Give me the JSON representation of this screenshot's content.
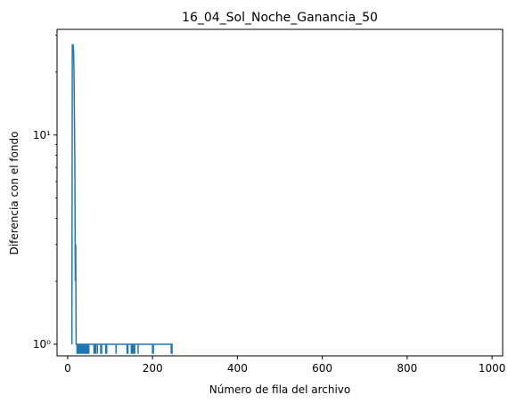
{
  "chart_data": {
    "type": "line",
    "title": "16_04_Sol_Noche_Ganancia_50",
    "xlabel": "Número de fila del archivo",
    "ylabel": "Diferencia con el fondo",
    "xlim": [
      -25,
      1025
    ],
    "ylim": [
      0.88,
      32
    ],
    "yscale": "log",
    "grid": false,
    "x_ticks": [
      0,
      200,
      400,
      600,
      800,
      1000
    ],
    "y_ticks": [
      {
        "value": 1,
        "label": "10⁰"
      },
      {
        "value": 10,
        "label": "10¹"
      }
    ],
    "series": [
      {
        "color": "#1f77b4",
        "x": [
          10,
          11,
          12,
          13,
          14,
          15,
          16,
          17,
          18,
          19,
          20,
          21,
          22,
          23,
          24,
          25,
          26,
          27,
          28,
          29,
          30,
          31,
          32,
          33,
          34,
          35,
          36,
          37,
          38,
          39,
          40,
          41,
          42,
          43,
          44,
          45,
          46,
          47,
          48,
          49,
          50,
          51,
          52,
          53,
          54,
          55,
          56,
          57,
          58,
          59,
          60,
          61,
          62,
          63,
          64,
          65,
          66,
          67,
          68,
          69,
          70,
          71,
          72,
          73,
          74,
          75,
          76,
          77,
          78,
          79,
          80,
          81,
          82,
          83,
          84,
          85,
          86,
          87,
          88,
          89,
          90,
          91,
          92,
          93,
          94,
          95,
          96,
          97,
          98,
          99,
          100,
          101,
          102,
          103,
          104,
          105,
          106,
          107,
          108,
          109,
          110,
          111,
          112,
          113,
          114,
          115,
          116,
          117,
          118,
          119,
          120,
          121,
          122,
          123,
          124,
          125,
          126,
          127,
          128,
          129,
          130,
          131,
          132,
          133,
          134,
          135,
          136,
          137,
          138,
          139,
          140,
          141,
          142,
          143,
          144,
          145,
          146,
          147,
          148,
          149,
          150,
          151,
          152,
          153,
          154,
          155,
          156,
          157,
          158,
          159,
          160,
          161,
          162,
          163,
          164,
          165,
          166,
          167,
          168,
          169,
          170,
          171,
          172,
          173,
          174,
          175,
          176,
          177,
          178,
          179,
          180,
          181,
          182,
          183,
          184,
          185,
          186,
          187,
          188,
          189,
          190,
          191,
          192,
          193,
          194,
          195,
          196,
          197,
          198,
          199,
          200,
          201,
          202,
          203,
          204,
          205,
          206,
          207,
          208,
          209,
          210,
          211,
          212,
          213,
          214,
          215,
          216,
          217,
          218,
          219,
          220,
          221,
          222,
          223,
          224,
          225,
          226,
          227,
          228,
          229,
          230,
          231,
          232,
          233,
          234,
          235,
          236,
          237,
          238,
          239,
          240,
          241,
          242,
          243,
          244,
          245,
          246,
          247,
          248
        ],
        "y": [
          1,
          27,
          27,
          27,
          25,
          20,
          12,
          7,
          2,
          3,
          1,
          1,
          1,
          1,
          1,
          1,
          1,
          1,
          1,
          1,
          1,
          1,
          1,
          1,
          1,
          1,
          1,
          1,
          1,
          1,
          1,
          1,
          1,
          1,
          1,
          1,
          1,
          1,
          1,
          1,
          1,
          1,
          1,
          1,
          1,
          1,
          1,
          1,
          1,
          1,
          1,
          1,
          1,
          1,
          1,
          1,
          1,
          1,
          1,
          1,
          1,
          1,
          1,
          1,
          1,
          1,
          1,
          1,
          1,
          1,
          1,
          1,
          1,
          1,
          1,
          1,
          1,
          1,
          1,
          1,
          1,
          1,
          1,
          1,
          1,
          1,
          1,
          1,
          1,
          1,
          1,
          1,
          1,
          1,
          1,
          1,
          1,
          1,
          1,
          1,
          1,
          1,
          1,
          1,
          1,
          1,
          1,
          1,
          1,
          1,
          1,
          1,
          1,
          1,
          1,
          1,
          1,
          1,
          1,
          1,
          1,
          1,
          1,
          1,
          1,
          1,
          1,
          1,
          1,
          1,
          1,
          1,
          1,
          1,
          1,
          1,
          1,
          1,
          1,
          1,
          1,
          1,
          1,
          1,
          1,
          1,
          1,
          1,
          1,
          1,
          1,
          1,
          1,
          1,
          1,
          1,
          1,
          1,
          1,
          1,
          1,
          1,
          1,
          1,
          1,
          1,
          1,
          1,
          1,
          1,
          1,
          1,
          1,
          1,
          1,
          1,
          1,
          1,
          1,
          1,
          1,
          1,
          1,
          1,
          1,
          1,
          1,
          1,
          1,
          1,
          1,
          1,
          1,
          1,
          1,
          1,
          1,
          1,
          1,
          1,
          1,
          1,
          1,
          1,
          1,
          1,
          1,
          1,
          1,
          1,
          1,
          1,
          1,
          1,
          1,
          1,
          1,
          1,
          1,
          1,
          1,
          1,
          1,
          1,
          1,
          1,
          1,
          1,
          1,
          1,
          1,
          1,
          1,
          1,
          1,
          1,
          1,
          1,
          1
        ]
      }
    ],
    "spikes_at_one": [
      22,
      24,
      26,
      28,
      30,
      32,
      34,
      36,
      38,
      40,
      42,
      44,
      46,
      48,
      50,
      62,
      64,
      66,
      70,
      78,
      80,
      90,
      92,
      114,
      140,
      142,
      150,
      152,
      155,
      158,
      166,
      200,
      202,
      244,
      246
    ]
  }
}
